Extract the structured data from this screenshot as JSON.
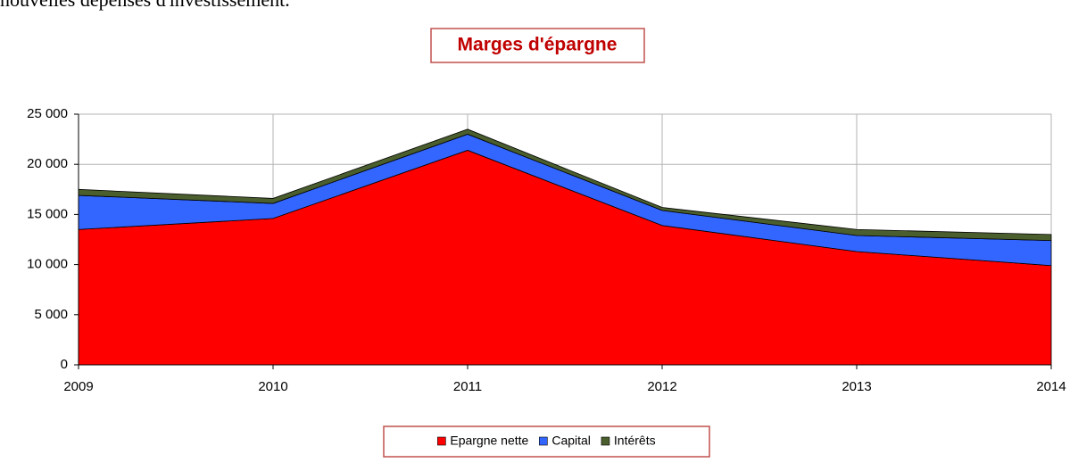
{
  "intro_text": "nouvelles dépenses d'investissement.",
  "chart_data": {
    "type": "stacked_area",
    "title": "Marges d'épargne",
    "categories": [
      "2009",
      "2010",
      "2011",
      "2012",
      "2013",
      "2014"
    ],
    "series": [
      {
        "name": "Epargne nette",
        "color": "#ff0000",
        "values": [
          13500,
          14600,
          21400,
          13900,
          11300,
          9900
        ]
      },
      {
        "name": "Capital",
        "color": "#3366ff",
        "values": [
          3400,
          1500,
          1600,
          1500,
          1600,
          2500
        ]
      },
      {
        "name": "Intérêts",
        "color": "#4a5e2e",
        "values": [
          600,
          500,
          500,
          300,
          600,
          600
        ]
      }
    ],
    "ylim": [
      0,
      25000
    ],
    "yticks": [
      0,
      {
        "value": 5000,
        "label": "5 000"
      },
      {
        "value": 10000,
        "label": "10 000"
      },
      {
        "value": 15000,
        "label": "15 000"
      },
      {
        "value": 20000,
        "label": "20 000"
      },
      {
        "value": 25000,
        "label": "25 000"
      }
    ],
    "grid": true,
    "legend": "bottom"
  }
}
